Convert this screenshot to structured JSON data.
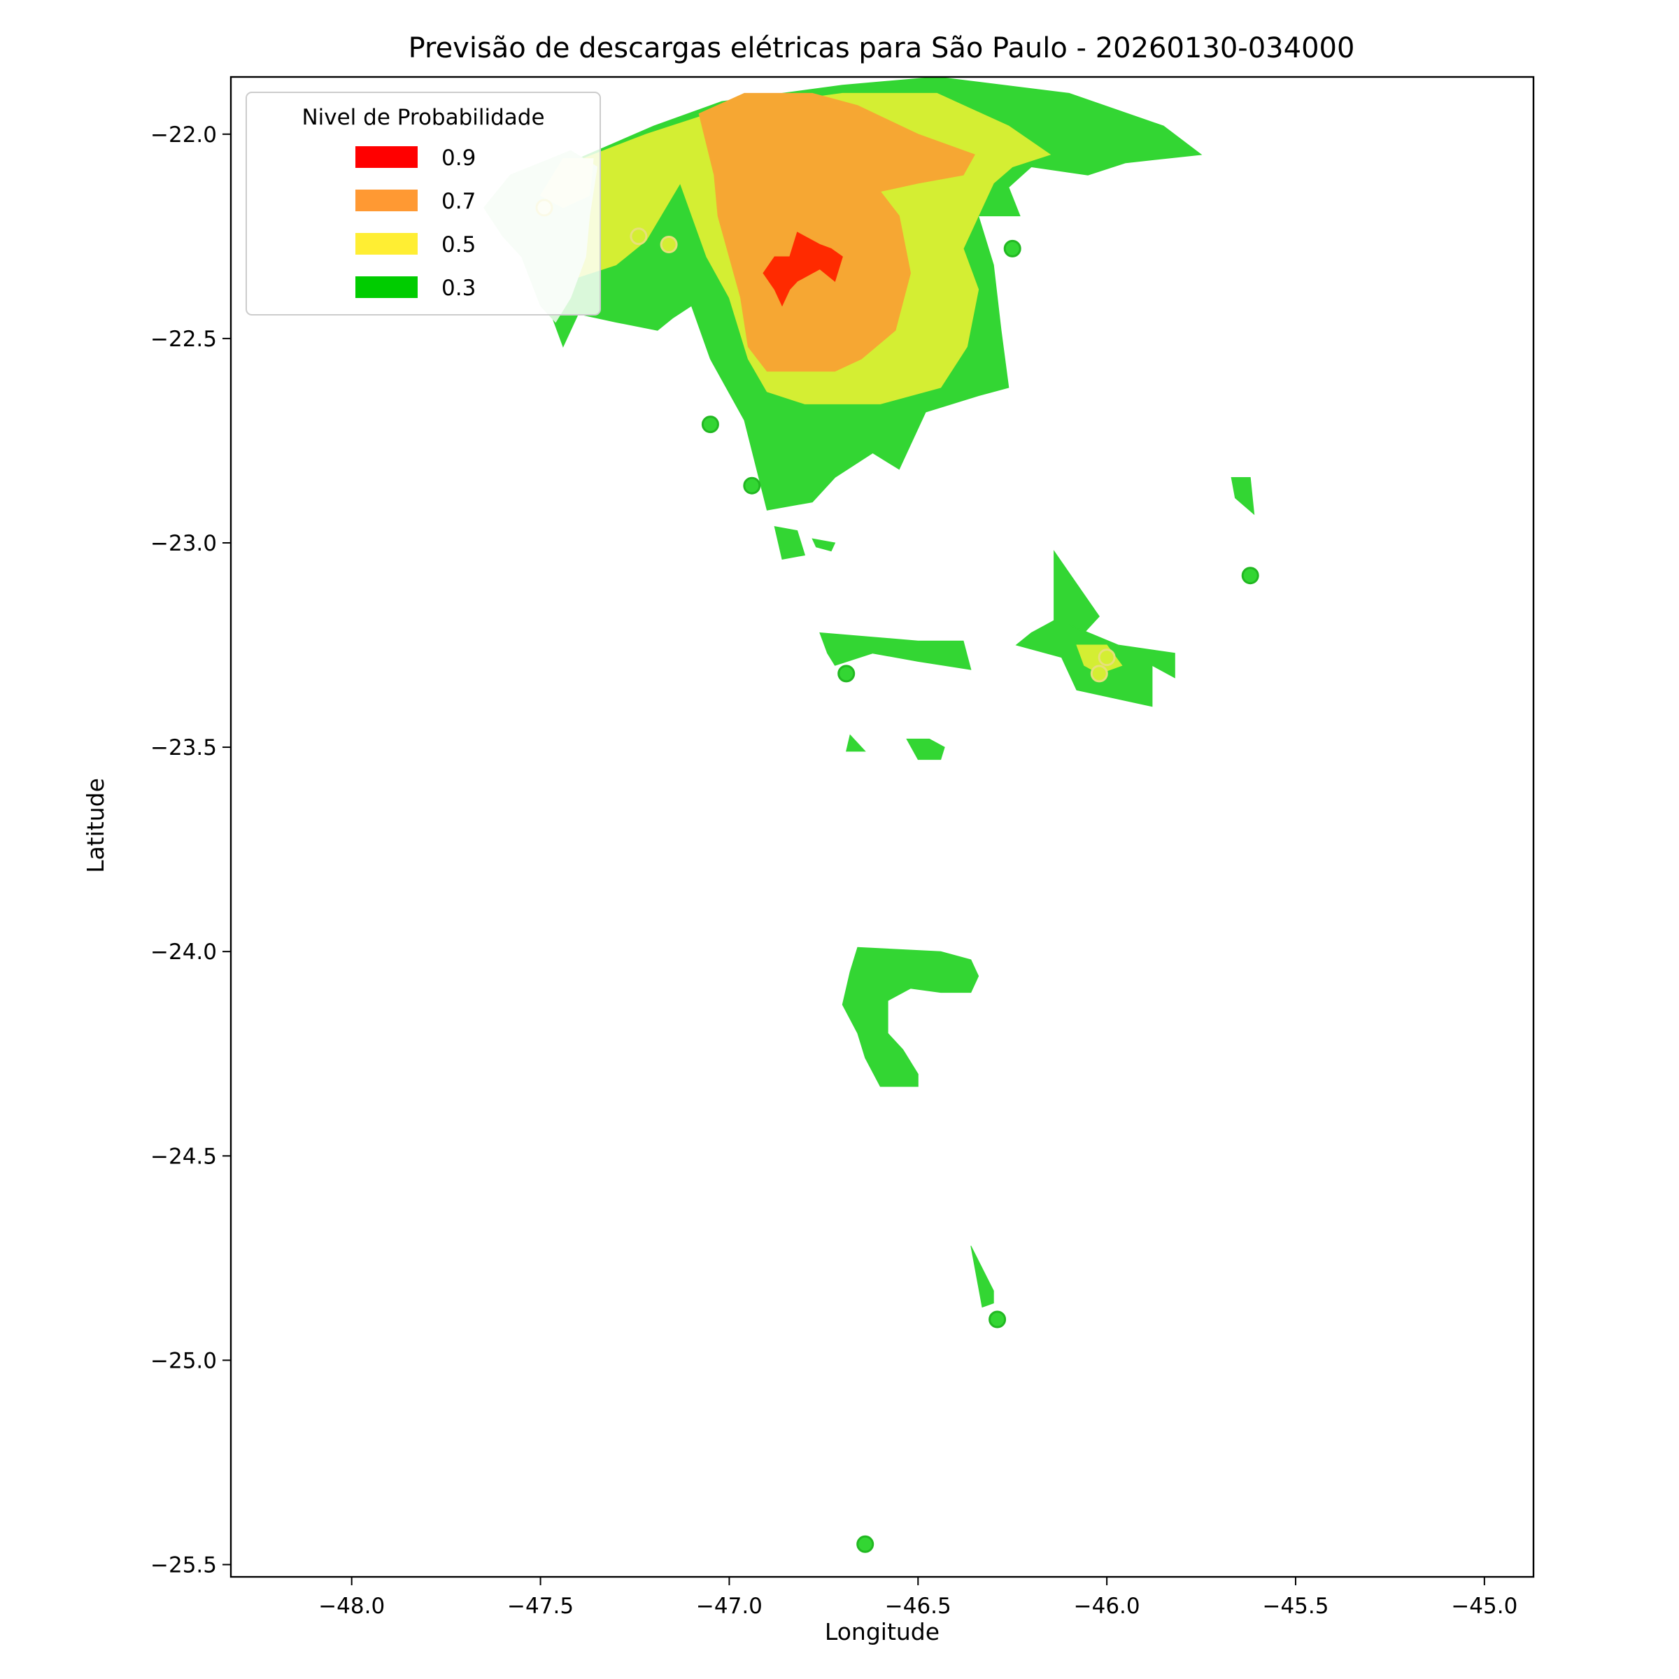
{
  "chart_data": {
    "type": "filled-contour map",
    "title": "Previsão de descargas elétricas para São Paulo - 20260130-034000",
    "xlabel": "Longitude",
    "ylabel": "Latitude",
    "xlim": [
      -48.32,
      -44.87
    ],
    "ylim": [
      -25.53,
      -21.86
    ],
    "x_ticks": [
      -48.0,
      -47.5,
      -47.0,
      -46.5,
      -46.0,
      -45.5,
      -45.0
    ],
    "x_tick_labels": [
      "−48.0",
      "−47.5",
      "−47.0",
      "−46.5",
      "−46.0",
      "−45.5",
      "−45.0"
    ],
    "y_ticks": [
      -22.0,
      -22.5,
      -23.0,
      -23.5,
      -24.0,
      -24.5,
      -25.0,
      -25.5
    ],
    "y_tick_labels": [
      "−22.0",
      "−22.5",
      "−23.0",
      "−23.5",
      "−24.0",
      "−24.5",
      "−25.0",
      "−25.5"
    ],
    "grid": false,
    "legend": {
      "title": "Nivel de Probabilidade",
      "placement": "top-left",
      "entries": [
        {
          "label": "0.9",
          "color": "#ff0000"
        },
        {
          "label": "0.7",
          "color": "#ff9933"
        },
        {
          "label": "0.5",
          "color": "#ffee33"
        },
        {
          "label": "0.3",
          "color": "#00cc00"
        }
      ]
    },
    "level_colors": {
      "0.3": "#33d633",
      "0.5": "#d4ee33",
      "0.7": "#f6a733",
      "0.9": "#ff2a00",
      "pale": "#d6f5d6",
      "pale_yellow": "#f3f8d2"
    },
    "regions": [
      {
        "level": "0.3",
        "points": [
          [
            -47.44,
            -22.52
          ],
          [
            -47.52,
            -22.32
          ],
          [
            -47.6,
            -22.2
          ],
          [
            -47.5,
            -22.1
          ],
          [
            -47.2,
            -21.98
          ],
          [
            -47.02,
            -21.92
          ],
          [
            -46.7,
            -21.88
          ],
          [
            -46.45,
            -21.86
          ],
          [
            -46.1,
            -21.9
          ],
          [
            -45.85,
            -21.98
          ],
          [
            -45.75,
            -22.05
          ],
          [
            -45.95,
            -22.07
          ],
          [
            -46.05,
            -22.1
          ],
          [
            -46.2,
            -22.08
          ],
          [
            -46.26,
            -22.13
          ],
          [
            -46.23,
            -22.2
          ],
          [
            -46.34,
            -22.2
          ],
          [
            -46.3,
            -22.32
          ],
          [
            -46.28,
            -22.48
          ],
          [
            -46.26,
            -22.62
          ],
          [
            -46.34,
            -22.64
          ],
          [
            -46.48,
            -22.68
          ],
          [
            -46.55,
            -22.82
          ],
          [
            -46.62,
            -22.78
          ],
          [
            -46.72,
            -22.84
          ],
          [
            -46.78,
            -22.9
          ],
          [
            -46.9,
            -22.92
          ],
          [
            -46.96,
            -22.7
          ],
          [
            -47.05,
            -22.55
          ],
          [
            -47.1,
            -22.42
          ],
          [
            -47.15,
            -22.45
          ],
          [
            -47.19,
            -22.48
          ],
          [
            -47.3,
            -22.46
          ],
          [
            -47.4,
            -22.44
          ]
        ]
      },
      {
        "level": "0.3",
        "points": [
          [
            -46.88,
            -22.96
          ],
          [
            -46.82,
            -22.97
          ],
          [
            -46.8,
            -23.03
          ],
          [
            -46.86,
            -23.04
          ]
        ]
      },
      {
        "level": "0.3",
        "points": [
          [
            -46.78,
            -22.99
          ],
          [
            -46.72,
            -23.0
          ],
          [
            -46.73,
            -23.02
          ],
          [
            -46.77,
            -23.01
          ]
        ]
      },
      {
        "level": "0.3",
        "points": [
          [
            -46.76,
            -23.22
          ],
          [
            -46.5,
            -23.24
          ],
          [
            -46.38,
            -23.24
          ],
          [
            -46.36,
            -23.31
          ],
          [
            -46.5,
            -23.29
          ],
          [
            -46.62,
            -23.27
          ],
          [
            -46.72,
            -23.3
          ],
          [
            -46.74,
            -23.27
          ]
        ]
      },
      {
        "level": "0.3",
        "points": [
          [
            -46.14,
            -23.02
          ],
          [
            -46.14,
            -23.19
          ],
          [
            -46.2,
            -23.22
          ],
          [
            -46.24,
            -23.25
          ],
          [
            -46.12,
            -23.28
          ],
          [
            -46.08,
            -23.36
          ],
          [
            -45.88,
            -23.4
          ],
          [
            -45.88,
            -23.3
          ],
          [
            -45.82,
            -23.33
          ],
          [
            -45.82,
            -23.27
          ],
          [
            -45.97,
            -23.25
          ],
          [
            -46.1,
            -23.2
          ],
          [
            -46.06,
            -23.22
          ],
          [
            -46.02,
            -23.18
          ]
        ]
      },
      {
        "level": "0.3",
        "points": [
          [
            -46.53,
            -23.48
          ],
          [
            -46.5,
            -23.53
          ],
          [
            -46.44,
            -23.53
          ],
          [
            -46.43,
            -23.5
          ],
          [
            -46.47,
            -23.48
          ]
        ]
      },
      {
        "level": "0.3",
        "points": [
          [
            -46.68,
            -23.47
          ],
          [
            -46.64,
            -23.51
          ],
          [
            -46.69,
            -23.51
          ]
        ]
      },
      {
        "level": "0.3",
        "points": [
          [
            -45.67,
            -22.84
          ],
          [
            -45.62,
            -22.84
          ],
          [
            -45.61,
            -22.93
          ],
          [
            -45.66,
            -22.89
          ]
        ]
      },
      {
        "level": "0.3",
        "points": [
          [
            -46.66,
            -23.99
          ],
          [
            -46.44,
            -24.0
          ],
          [
            -46.36,
            -24.02
          ],
          [
            -46.34,
            -24.06
          ],
          [
            -46.36,
            -24.1
          ],
          [
            -46.44,
            -24.1
          ],
          [
            -46.52,
            -24.09
          ],
          [
            -46.58,
            -24.12
          ],
          [
            -46.58,
            -24.2
          ],
          [
            -46.54,
            -24.24
          ],
          [
            -46.5,
            -24.3
          ],
          [
            -46.5,
            -24.33
          ],
          [
            -46.6,
            -24.33
          ],
          [
            -46.64,
            -24.26
          ],
          [
            -46.66,
            -24.2
          ],
          [
            -46.7,
            -24.13
          ],
          [
            -46.68,
            -24.05
          ]
        ]
      },
      {
        "level": "0.3",
        "points": [
          [
            -46.36,
            -24.72
          ],
          [
            -46.3,
            -24.83
          ],
          [
            -46.3,
            -24.86
          ],
          [
            -46.33,
            -24.87
          ]
        ]
      },
      {
        "level": "0.5",
        "points": [
          [
            -47.54,
            -22.3
          ],
          [
            -47.6,
            -22.18
          ],
          [
            -47.5,
            -22.1
          ],
          [
            -47.22,
            -22.0
          ],
          [
            -47.02,
            -21.94
          ],
          [
            -46.7,
            -21.9
          ],
          [
            -46.45,
            -21.9
          ],
          [
            -46.26,
            -21.98
          ],
          [
            -46.15,
            -22.05
          ],
          [
            -46.25,
            -22.08
          ],
          [
            -46.3,
            -22.12
          ],
          [
            -46.34,
            -22.2
          ],
          [
            -46.38,
            -22.28
          ],
          [
            -46.34,
            -22.38
          ],
          [
            -46.37,
            -22.52
          ],
          [
            -46.44,
            -22.62
          ],
          [
            -46.6,
            -22.66
          ],
          [
            -46.8,
            -22.66
          ],
          [
            -46.9,
            -22.63
          ],
          [
            -46.95,
            -22.55
          ],
          [
            -47.0,
            -22.4
          ],
          [
            -47.06,
            -22.3
          ],
          [
            -47.13,
            -22.12
          ],
          [
            -47.22,
            -22.26
          ],
          [
            -47.3,
            -22.32
          ],
          [
            -47.4,
            -22.35
          ],
          [
            -47.5,
            -22.35
          ]
        ]
      },
      {
        "level": "0.5",
        "points": [
          [
            -46.08,
            -23.25
          ],
          [
            -46.0,
            -23.25
          ],
          [
            -45.96,
            -23.3
          ],
          [
            -46.02,
            -23.32
          ],
          [
            -46.06,
            -23.3
          ]
        ]
      },
      {
        "level": "0.7",
        "points": [
          [
            -47.08,
            -21.95
          ],
          [
            -46.96,
            -21.9
          ],
          [
            -46.78,
            -21.9
          ],
          [
            -46.66,
            -21.93
          ],
          [
            -46.5,
            -22.0
          ],
          [
            -46.35,
            -22.05
          ],
          [
            -46.38,
            -22.1
          ],
          [
            -46.5,
            -22.12
          ],
          [
            -46.6,
            -22.14
          ],
          [
            -46.55,
            -22.2
          ],
          [
            -46.52,
            -22.34
          ],
          [
            -46.56,
            -22.48
          ],
          [
            -46.65,
            -22.55
          ],
          [
            -46.72,
            -22.58
          ],
          [
            -46.9,
            -22.58
          ],
          [
            -46.95,
            -22.52
          ],
          [
            -46.97,
            -22.4
          ],
          [
            -47.0,
            -22.3
          ],
          [
            -47.03,
            -22.2
          ],
          [
            -47.04,
            -22.1
          ]
        ]
      },
      {
        "level": "0.9",
        "points": [
          [
            -46.82,
            -22.24
          ],
          [
            -46.84,
            -22.3
          ],
          [
            -46.88,
            -22.3
          ],
          [
            -46.91,
            -22.34
          ],
          [
            -46.88,
            -22.38
          ],
          [
            -46.86,
            -22.42
          ],
          [
            -46.84,
            -22.38
          ],
          [
            -46.82,
            -22.36
          ],
          [
            -46.76,
            -22.33
          ],
          [
            -46.72,
            -22.36
          ],
          [
            -46.7,
            -22.3
          ],
          [
            -46.73,
            -22.28
          ],
          [
            -46.76,
            -22.27
          ],
          [
            -46.8,
            -22.25
          ]
        ]
      },
      {
        "level": "pale",
        "points": [
          [
            -47.65,
            -22.18
          ],
          [
            -47.58,
            -22.1
          ],
          [
            -47.42,
            -22.04
          ],
          [
            -47.35,
            -22.08
          ],
          [
            -47.37,
            -22.2
          ],
          [
            -47.38,
            -22.3
          ],
          [
            -47.42,
            -22.4
          ],
          [
            -47.46,
            -22.46
          ],
          [
            -47.5,
            -22.42
          ],
          [
            -47.55,
            -22.3
          ],
          [
            -47.6,
            -22.25
          ]
        ]
      },
      {
        "level": "pale_yellow",
        "points": [
          [
            -47.5,
            -22.15
          ],
          [
            -47.44,
            -22.06
          ],
          [
            -47.36,
            -22.06
          ],
          [
            -47.37,
            -22.15
          ],
          [
            -47.44,
            -22.18
          ]
        ]
      }
    ],
    "points": [
      {
        "lon": -47.49,
        "lat": -22.18,
        "level": "pale_yellow"
      },
      {
        "lon": -47.24,
        "lat": -22.25,
        "level": "0.5"
      },
      {
        "lon": -47.16,
        "lat": -22.27,
        "level": "0.5"
      },
      {
        "lon": -46.25,
        "lat": -22.28,
        "level": "0.3"
      },
      {
        "lon": -47.05,
        "lat": -22.71,
        "level": "0.3"
      },
      {
        "lon": -46.94,
        "lat": -22.86,
        "level": "0.3"
      },
      {
        "lon": -45.62,
        "lat": -23.08,
        "level": "0.3"
      },
      {
        "lon": -46.69,
        "lat": -23.32,
        "level": "0.3"
      },
      {
        "lon": -46.0,
        "lat": -23.28,
        "level": "0.5"
      },
      {
        "lon": -46.02,
        "lat": -23.32,
        "level": "0.5"
      },
      {
        "lon": -46.29,
        "lat": -24.9,
        "level": "0.3"
      },
      {
        "lon": -46.64,
        "lat": -25.45,
        "level": "0.3"
      }
    ]
  }
}
